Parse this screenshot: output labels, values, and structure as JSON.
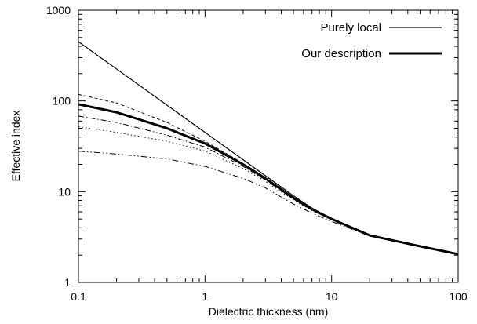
{
  "chart_data": {
    "type": "line",
    "title": "",
    "xlabel": "Dielectric thickness (nm)",
    "ylabel": "Effective index",
    "x_scale": "log",
    "y_scale": "log",
    "xlim": [
      0.1,
      100
    ],
    "ylim": [
      1,
      1000
    ],
    "x_ticks": [
      0.1,
      1,
      10,
      100
    ],
    "x_tick_labels": [
      "0.1",
      "1",
      "10",
      "100"
    ],
    "y_ticks": [
      1,
      10,
      100,
      1000
    ],
    "y_tick_labels": [
      "1",
      "10",
      "100",
      "1000"
    ],
    "grid": false,
    "legend_position": "top-right",
    "series": [
      {
        "name": "Purely local",
        "style": "solid-thin",
        "x": [
          0.1,
          0.2,
          0.5,
          1,
          2,
          3,
          5,
          7,
          10,
          20,
          50,
          100
        ],
        "y": [
          450,
          225,
          90,
          45,
          22.5,
          15,
          9,
          6.6,
          5,
          3.3,
          2.5,
          2.05
        ]
      },
      {
        "name": "Our description",
        "style": "solid-thick",
        "x": [
          0.1,
          0.2,
          0.5,
          1,
          2,
          3,
          5,
          7,
          10,
          20,
          50,
          100
        ],
        "y": [
          92,
          75,
          50,
          34,
          20,
          14,
          8.5,
          6.4,
          5.0,
          3.3,
          2.5,
          2.05
        ]
      },
      {
        "style": "dashed",
        "x": [
          0.1,
          0.2,
          0.5,
          1,
          2,
          3,
          5,
          7,
          10,
          20,
          50,
          100
        ],
        "y": [
          118,
          95,
          58,
          36,
          20.5,
          14.3,
          8.6,
          6.4,
          5.0,
          3.3,
          2.5,
          2.05
        ]
      },
      {
        "style": "dash-dot",
        "x": [
          0.1,
          0.2,
          0.5,
          1,
          2,
          3,
          5,
          7,
          10,
          20,
          50,
          100
        ],
        "y": [
          68,
          58,
          42,
          31,
          19,
          13.5,
          8.3,
          6.3,
          5.0,
          3.3,
          2.5,
          2.05
        ]
      },
      {
        "style": "dotted",
        "x": [
          0.1,
          0.2,
          0.5,
          1,
          2,
          3,
          5,
          7,
          10,
          20,
          50,
          100
        ],
        "y": [
          52,
          45,
          36,
          28,
          18,
          13,
          8.1,
          6.2,
          4.9,
          3.3,
          2.5,
          2.05
        ]
      },
      {
        "style": "dash-dot-dot",
        "x": [
          0.1,
          0.2,
          0.5,
          1,
          2,
          3,
          5,
          7,
          10,
          20,
          50,
          100
        ],
        "y": [
          28,
          26,
          23,
          19,
          14,
          11,
          7.3,
          5.8,
          4.7,
          3.25,
          2.5,
          2.05
        ]
      }
    ]
  }
}
